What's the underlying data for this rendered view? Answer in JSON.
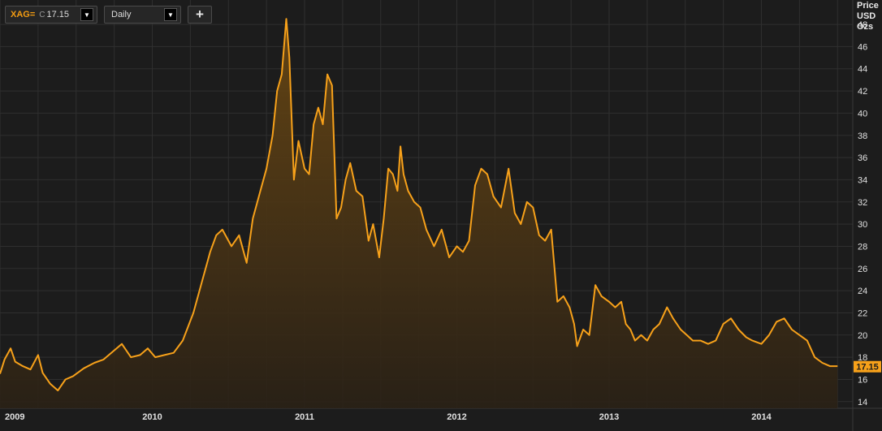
{
  "toolbar": {
    "symbol": "XAG=",
    "close_label": "C",
    "last_value": "17.15",
    "interval": "Daily",
    "add_label": "+"
  },
  "axis_unit": [
    "Price",
    "USD",
    "Ozs"
  ],
  "colors": {
    "line": "#f7a11a",
    "background": "#1c1c1c",
    "grid": "#2f2f2f",
    "label_bg": "#f7a11a"
  },
  "icons": {
    "dropdown": "triangle-down-icon",
    "add": "plus-icon"
  },
  "chart_data": {
    "type": "area",
    "title": "",
    "xlabel": "",
    "ylabel": "Price USD Ozs",
    "xlim": [
      2009.0,
      2014.6
    ],
    "ylim": [
      13.4,
      50.2
    ],
    "y_ticks": [
      14,
      16,
      18,
      20,
      22,
      24,
      26,
      28,
      30,
      32,
      34,
      36,
      38,
      40,
      42,
      44,
      46,
      48
    ],
    "x_ticks": [
      {
        "value": 2009,
        "label": "2009"
      },
      {
        "value": 2010,
        "label": "2010"
      },
      {
        "value": 2011,
        "label": "2011"
      },
      {
        "value": 2012,
        "label": "2012"
      },
      {
        "value": 2013,
        "label": "2013"
      },
      {
        "value": 2014,
        "label": "2014"
      }
    ],
    "grid": true,
    "last_label": "17.15",
    "last_value": 17.15,
    "series": [
      {
        "x": [
          2009.0,
          2009.03,
          2009.07,
          2009.1,
          2009.15,
          2009.2,
          2009.25,
          2009.28,
          2009.33,
          2009.38,
          2009.43,
          2009.48,
          2009.55,
          2009.62,
          2009.68,
          2009.74,
          2009.8,
          2009.86,
          2009.92,
          2009.97,
          2010.02,
          2010.08,
          2010.14,
          2010.2,
          2010.27,
          2010.33,
          2010.38,
          2010.42,
          2010.46,
          2010.52,
          2010.57,
          2010.62,
          2010.66,
          2010.71,
          2010.75,
          2010.79,
          2010.82,
          2010.85,
          2010.88,
          2010.9,
          2010.93,
          2010.96,
          2011.0,
          2011.03,
          2011.06,
          2011.09,
          2011.12,
          2011.15,
          2011.18,
          2011.21,
          2011.24,
          2011.27,
          2011.3,
          2011.34,
          2011.38,
          2011.42,
          2011.45,
          2011.49,
          2011.52,
          2011.55,
          2011.58,
          2011.61,
          2011.63,
          2011.65,
          2011.68,
          2011.72,
          2011.76,
          2011.8,
          2011.85,
          2011.9,
          2011.95,
          2012.0,
          2012.04,
          2012.08,
          2012.12,
          2012.16,
          2012.2,
          2012.24,
          2012.29,
          2012.34,
          2012.38,
          2012.42,
          2012.46,
          2012.5,
          2012.54,
          2012.58,
          2012.62,
          2012.66,
          2012.7,
          2012.74,
          2012.77,
          2012.79,
          2012.83,
          2012.87,
          2012.91,
          2012.95,
          2013.0,
          2013.04,
          2013.08,
          2013.11,
          2013.14,
          2013.17,
          2013.21,
          2013.25,
          2013.29,
          2013.33,
          2013.38,
          2013.42,
          2013.47,
          2013.51,
          2013.55,
          2013.6,
          2013.65,
          2013.7,
          2013.75,
          2013.8,
          2013.85,
          2013.9,
          2013.94,
          2014.0,
          2014.05,
          2014.1,
          2014.15,
          2014.2,
          2014.25,
          2014.3,
          2014.35,
          2014.4,
          2014.45,
          2014.5
        ],
        "y": [
          16.5,
          17.8,
          18.8,
          17.6,
          17.2,
          16.9,
          18.2,
          16.6,
          15.6,
          15.0,
          16.0,
          16.3,
          17.0,
          17.5,
          17.8,
          18.5,
          19.2,
          18.0,
          18.2,
          18.8,
          18.0,
          18.2,
          18.4,
          19.5,
          22.0,
          25.0,
          27.5,
          29.0,
          29.5,
          28.0,
          29.0,
          26.5,
          30.5,
          33.0,
          35.0,
          38.0,
          42.0,
          43.5,
          48.5,
          45.0,
          34.0,
          37.5,
          35.0,
          34.5,
          39.0,
          40.5,
          39.0,
          43.5,
          42.5,
          30.5,
          31.5,
          34.0,
          35.5,
          33.0,
          32.5,
          28.5,
          30.0,
          27.0,
          30.5,
          35.0,
          34.5,
          33.0,
          37.0,
          34.5,
          33.0,
          32.0,
          31.5,
          29.5,
          28.0,
          29.5,
          27.0,
          28.0,
          27.5,
          28.5,
          33.5,
          35.0,
          34.5,
          32.5,
          31.5,
          35.0,
          31.0,
          30.0,
          32.0,
          31.5,
          29.0,
          28.5,
          29.5,
          23.0,
          23.5,
          22.5,
          21.0,
          19.0,
          20.5,
          20.0,
          24.5,
          23.5,
          23.0,
          22.5,
          23.0,
          21.0,
          20.5,
          19.5,
          20.0,
          19.5,
          20.5,
          21.0,
          22.5,
          21.5,
          20.5,
          20.0,
          19.5,
          19.5,
          19.2,
          19.5,
          21.0,
          21.5,
          20.5,
          19.8,
          19.5,
          19.2,
          20.0,
          21.2,
          21.5,
          20.5,
          20.0,
          19.5,
          18.0,
          17.5,
          17.2,
          17.2
        ]
      }
    ]
  }
}
